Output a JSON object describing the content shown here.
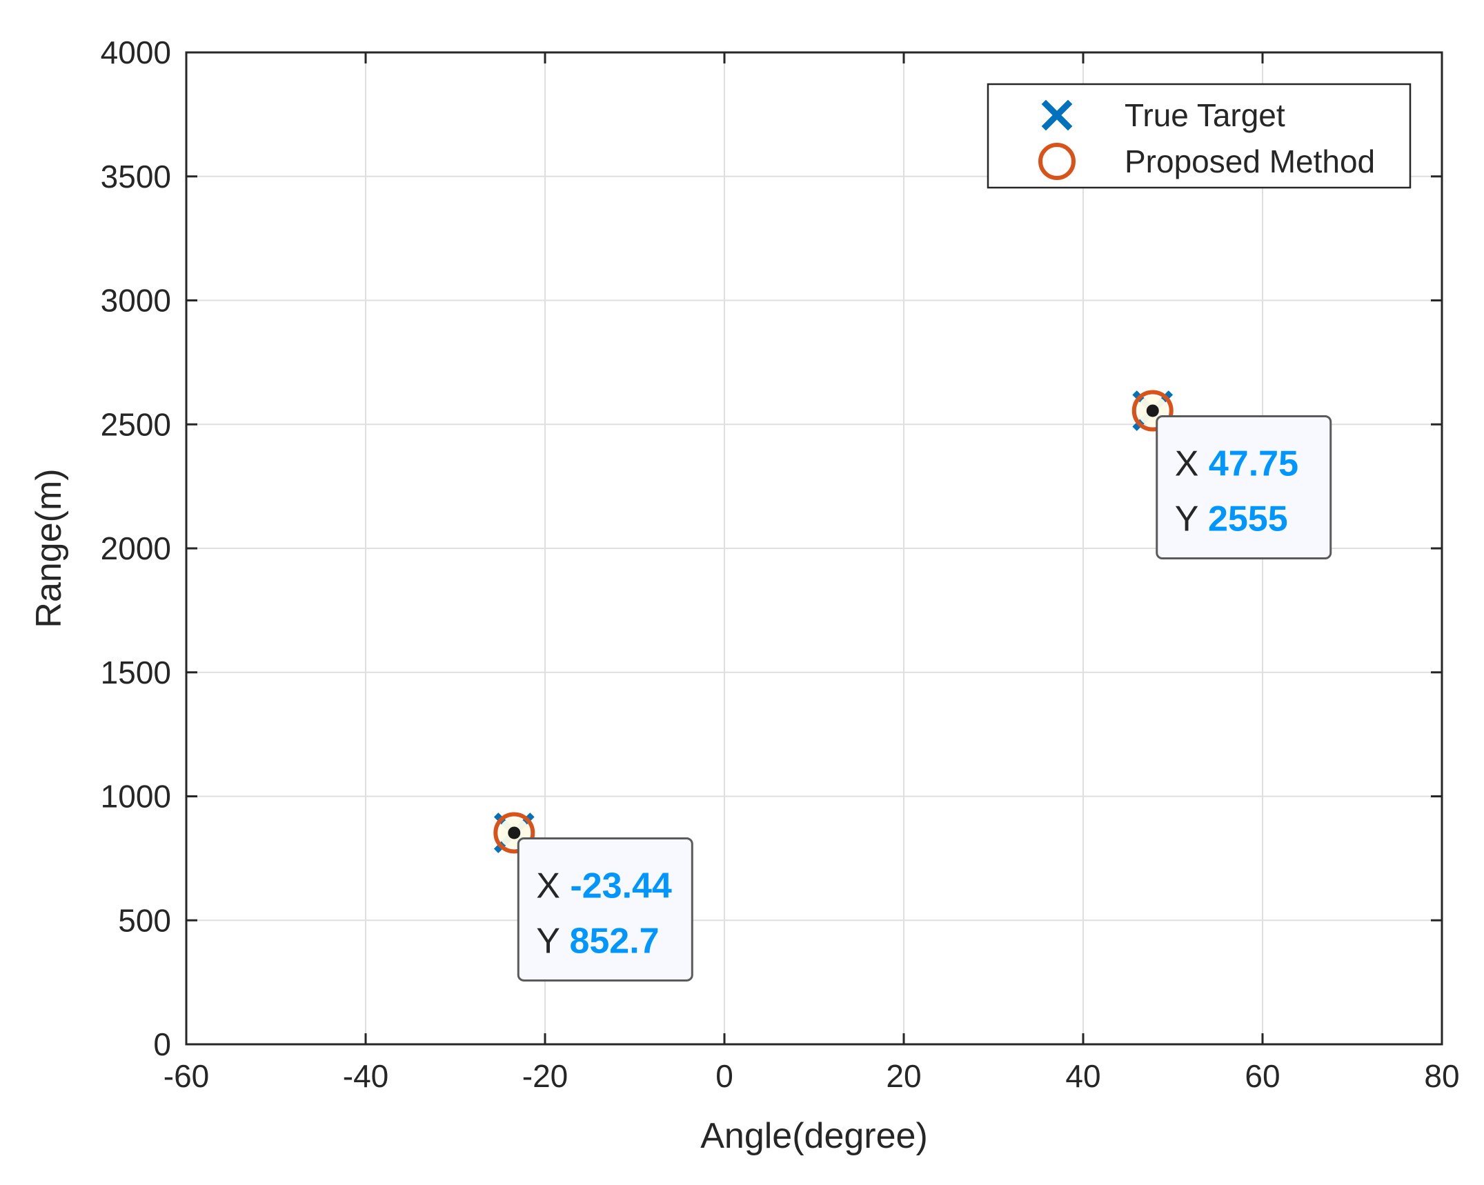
{
  "chart_data": {
    "type": "scatter",
    "title": "",
    "xlabel": "Angle(degree)",
    "ylabel": "Range(m)",
    "xlim": [
      -60,
      80
    ],
    "ylim": [
      0,
      4000
    ],
    "x_ticks": [
      -60,
      -40,
      -20,
      0,
      20,
      40,
      60,
      80
    ],
    "y_ticks": [
      0,
      500,
      1000,
      1500,
      2000,
      2500,
      3000,
      3500,
      4000
    ],
    "x_tick_labels": [
      "-60",
      "-40",
      "-20",
      "0",
      "20",
      "40",
      "60",
      "80"
    ],
    "y_tick_labels": [
      "0",
      "500",
      "1000",
      "1500",
      "2000",
      "2500",
      "3000",
      "3500",
      "4000"
    ],
    "grid": true,
    "legend_position": "top-right",
    "series": [
      {
        "name": "True Target",
        "marker": "x",
        "color": "#0072BD",
        "x": [
          -23.44,
          47.75
        ],
        "y": [
          852.7,
          2555
        ]
      },
      {
        "name": "Proposed Method",
        "marker": "o",
        "color": "#D95319",
        "x": [
          -23.44,
          47.75
        ],
        "y": [
          852.7,
          2555
        ]
      }
    ],
    "datatips": [
      {
        "x_key": "X",
        "x_value": "-23.44",
        "y_key": "Y",
        "y_value": "852.7",
        "x": -23.44,
        "y": 852.7
      },
      {
        "x_key": "X",
        "x_value": "47.75",
        "y_key": "Y",
        "y_value": "2555",
        "x": 47.75,
        "y": 2555
      }
    ],
    "datatip_value_color": "#0096FF"
  }
}
